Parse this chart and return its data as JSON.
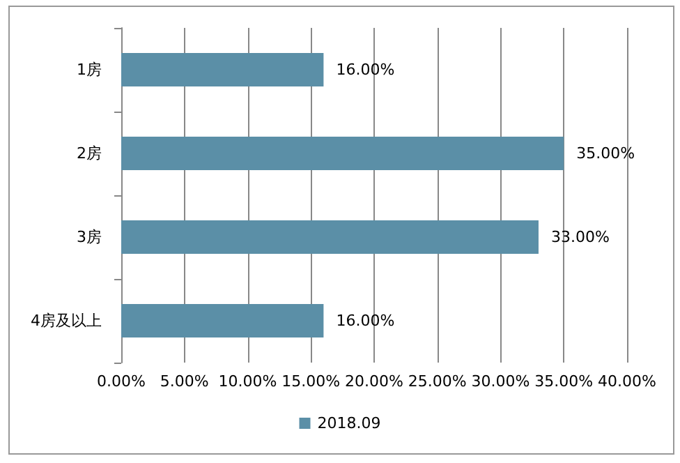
{
  "chart_data": {
    "type": "bar",
    "orientation": "horizontal",
    "categories": [
      "1房",
      "2房",
      "3房",
      "4房及以上"
    ],
    "series": [
      {
        "name": "2018.09",
        "color": "#5b8fa7",
        "values": [
          16,
          35,
          33,
          16
        ],
        "value_labels": [
          "16.00%",
          "35.00%",
          "33.00%",
          "16.00%"
        ]
      }
    ],
    "xlim": [
      0,
      40
    ],
    "xticks": [
      {
        "value": 0,
        "label": "0.00%"
      },
      {
        "value": 5,
        "label": "5.00%"
      },
      {
        "value": 10,
        "label": "10.00%"
      },
      {
        "value": 15,
        "label": "15.00%"
      },
      {
        "value": 20,
        "label": "20.00%"
      },
      {
        "value": 25,
        "label": "25.00%"
      },
      {
        "value": 30,
        "label": "30.00%"
      },
      {
        "value": 35,
        "label": "35.00%"
      },
      {
        "value": 40,
        "label": "40.00%"
      }
    ],
    "grid": "x",
    "legend": "bottom"
  }
}
